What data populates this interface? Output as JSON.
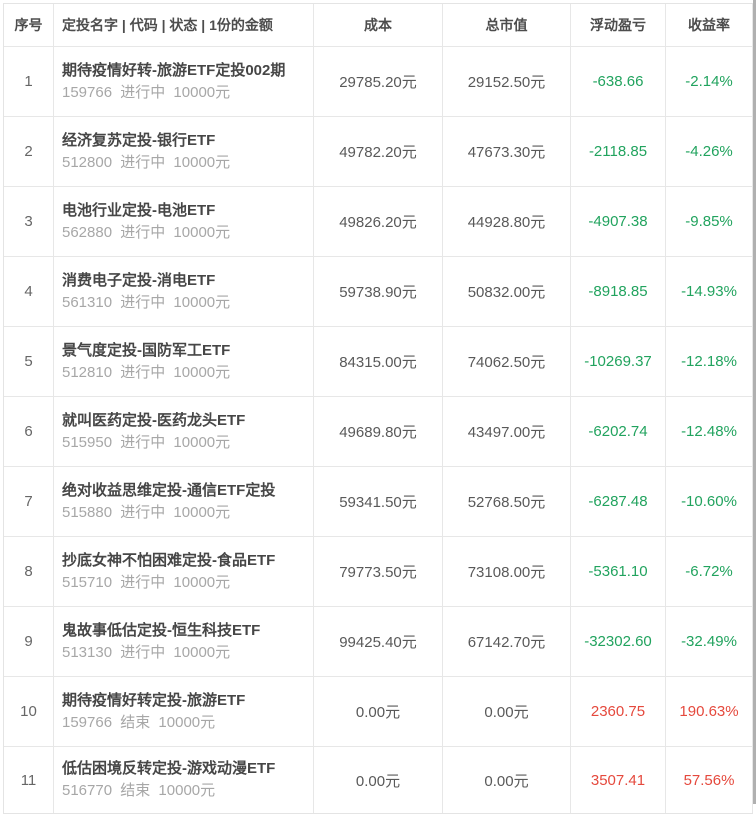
{
  "table": {
    "columns": [
      {
        "key": "index",
        "label": "序号"
      },
      {
        "key": "name",
        "label": "定投名字 | 代码 | 状态 | 1份的金额"
      },
      {
        "key": "cost",
        "label": "成本"
      },
      {
        "key": "market_value",
        "label": "总市值"
      },
      {
        "key": "pnl",
        "label": "浮动盈亏"
      },
      {
        "key": "return",
        "label": "收益率"
      }
    ],
    "rows": [
      {
        "index": "1",
        "name": "期待疫情好转-旅游ETF定投002期",
        "code": "159766",
        "status": "进行中",
        "unit": "10000元",
        "cost": "29785.20元",
        "market_value": "29152.50元",
        "pnl": "-638.66",
        "return": "-2.14%",
        "trend": "loss"
      },
      {
        "index": "2",
        "name": "经济复苏定投-银行ETF",
        "code": "512800",
        "status": "进行中",
        "unit": "10000元",
        "cost": "49782.20元",
        "market_value": "47673.30元",
        "pnl": "-2118.85",
        "return": "-4.26%",
        "trend": "loss"
      },
      {
        "index": "3",
        "name": "电池行业定投-电池ETF",
        "code": "562880",
        "status": "进行中",
        "unit": "10000元",
        "cost": "49826.20元",
        "market_value": "44928.80元",
        "pnl": "-4907.38",
        "return": "-9.85%",
        "trend": "loss"
      },
      {
        "index": "4",
        "name": "消费电子定投-消电ETF",
        "code": "561310",
        "status": "进行中",
        "unit": "10000元",
        "cost": "59738.90元",
        "market_value": "50832.00元",
        "pnl": "-8918.85",
        "return": "-14.93%",
        "trend": "loss"
      },
      {
        "index": "5",
        "name": "景气度定投-国防军工ETF",
        "code": "512810",
        "status": "进行中",
        "unit": "10000元",
        "cost": "84315.00元",
        "market_value": "74062.50元",
        "pnl": "-10269.37",
        "return": "-12.18%",
        "trend": "loss"
      },
      {
        "index": "6",
        "name": "就叫医药定投-医药龙头ETF",
        "code": "515950",
        "status": "进行中",
        "unit": "10000元",
        "cost": "49689.80元",
        "market_value": "43497.00元",
        "pnl": "-6202.74",
        "return": "-12.48%",
        "trend": "loss"
      },
      {
        "index": "7",
        "name": "绝对收益思维定投-通信ETF定投",
        "code": "515880",
        "status": "进行中",
        "unit": "10000元",
        "cost": "59341.50元",
        "market_value": "52768.50元",
        "pnl": "-6287.48",
        "return": "-10.60%",
        "trend": "loss"
      },
      {
        "index": "8",
        "name": "抄底女神不怕困难定投-食品ETF",
        "code": "515710",
        "status": "进行中",
        "unit": "10000元",
        "cost": "79773.50元",
        "market_value": "73108.00元",
        "pnl": "-5361.10",
        "return": "-6.72%",
        "trend": "loss"
      },
      {
        "index": "9",
        "name": "鬼故事低估定投-恒生科技ETF",
        "code": "513130",
        "status": "进行中",
        "unit": "10000元",
        "cost": "99425.40元",
        "market_value": "67142.70元",
        "pnl": "-32302.60",
        "return": "-32.49%",
        "trend": "loss"
      },
      {
        "index": "10",
        "name": "期待疫情好转定投-旅游ETF",
        "code": "159766",
        "status": "结束",
        "unit": "10000元",
        "cost": "0.00元",
        "market_value": "0.00元",
        "pnl": "2360.75",
        "return": "190.63%",
        "trend": "gain"
      },
      {
        "index": "11",
        "name": "低估困境反转定投-游戏动漫ETF",
        "code": "516770",
        "status": "结束",
        "unit": "10000元",
        "cost": "0.00元",
        "market_value": "0.00元",
        "pnl": "3507.41",
        "return": "57.56%",
        "trend": "gain"
      }
    ]
  },
  "colors": {
    "loss_green": "#21a35e",
    "gain_red": "#e5493d",
    "border": "#e7e7e7"
  }
}
